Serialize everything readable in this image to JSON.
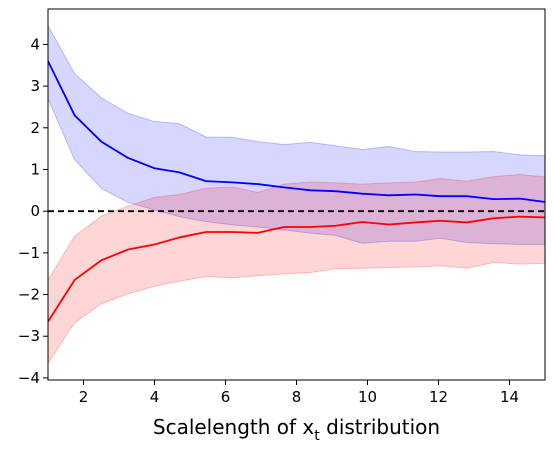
{
  "chart_data": {
    "type": "line",
    "title": "",
    "xlabel": "Scalelength of x",
    "xlabel_subscript": "t",
    "xlabel_suffix": " distribution",
    "ylabel": "",
    "xlim": [
      1.0,
      15.0
    ],
    "ylim": [
      -4.05,
      4.85
    ],
    "xticks": [
      2,
      4,
      6,
      8,
      10,
      12,
      14
    ],
    "yticks": [
      -4,
      -3,
      -2,
      -1,
      0,
      1,
      2,
      3,
      4
    ],
    "ytick_labels": [
      "−4",
      "−3",
      "−2",
      "−1",
      "0",
      "1",
      "2",
      "3",
      "4"
    ],
    "grid": false,
    "reference_line": {
      "y": 0,
      "style": "dashed",
      "color": "#000000"
    },
    "series": [
      {
        "color": "#0000ff",
        "x": [
          1.0,
          1.75,
          2.5,
          3.25,
          4.0,
          4.7,
          5.45,
          6.2,
          6.9,
          7.65,
          8.4,
          9.1,
          9.85,
          10.6,
          11.35,
          12.05,
          12.8,
          13.55,
          14.3,
          15.0
        ],
        "y": [
          3.6,
          2.3,
          1.67,
          1.28,
          1.03,
          0.93,
          0.72,
          0.69,
          0.65,
          0.57,
          0.5,
          0.48,
          0.42,
          0.38,
          0.4,
          0.36,
          0.36,
          0.29,
          0.3,
          0.22
        ],
        "upper": [
          4.45,
          3.3,
          2.72,
          2.35,
          2.15,
          2.1,
          1.78,
          1.77,
          1.67,
          1.6,
          1.65,
          1.57,
          1.48,
          1.55,
          1.43,
          1.42,
          1.42,
          1.43,
          1.35,
          1.33
        ],
        "lower": [
          2.7,
          1.23,
          0.55,
          0.21,
          0.03,
          -0.13,
          -0.25,
          -0.33,
          -0.38,
          -0.45,
          -0.53,
          -0.58,
          -0.77,
          -0.72,
          -0.72,
          -0.65,
          -0.75,
          -0.78,
          -0.8,
          -0.8
        ]
      },
      {
        "color": "#ff0000",
        "x": [
          1.0,
          1.75,
          2.5,
          3.25,
          4.0,
          4.7,
          5.45,
          6.2,
          6.9,
          7.65,
          8.4,
          9.1,
          9.85,
          10.6,
          11.35,
          12.05,
          12.8,
          13.55,
          14.3,
          15.0
        ],
        "y": [
          -2.65,
          -1.65,
          -1.18,
          -0.92,
          -0.8,
          -0.63,
          -0.5,
          -0.5,
          -0.52,
          -0.38,
          -0.38,
          -0.35,
          -0.26,
          -0.32,
          -0.27,
          -0.23,
          -0.27,
          -0.17,
          -0.13,
          -0.15
        ],
        "upper": [
          -1.65,
          -0.6,
          -0.12,
          0.12,
          0.33,
          0.4,
          0.55,
          0.58,
          0.45,
          0.65,
          0.7,
          0.68,
          0.65,
          0.68,
          0.7,
          0.78,
          0.72,
          0.83,
          0.88,
          0.82
        ],
        "lower": [
          -3.65,
          -2.68,
          -2.22,
          -1.98,
          -1.8,
          -1.68,
          -1.57,
          -1.6,
          -1.55,
          -1.5,
          -1.47,
          -1.38,
          -1.37,
          -1.35,
          -1.34,
          -1.31,
          -1.37,
          -1.23,
          -1.27,
          -1.25
        ]
      }
    ]
  }
}
